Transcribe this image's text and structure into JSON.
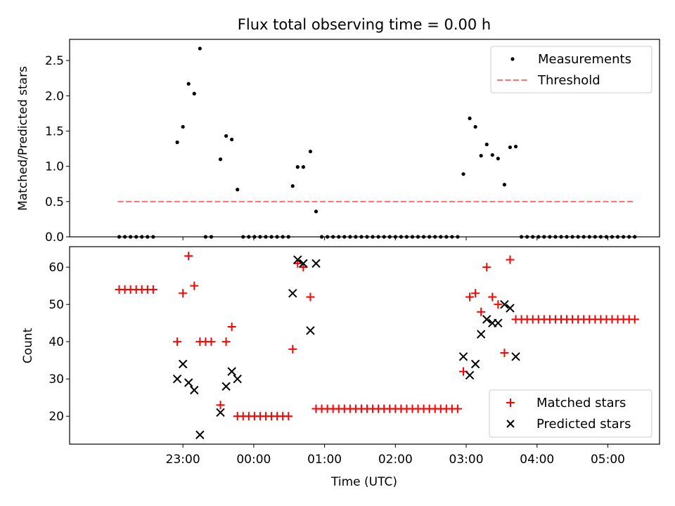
{
  "chart_data": [
    {
      "type": "scatter",
      "title": "Flux total observing time = 0.00 h",
      "ylabel": "Matched/Predicted stars",
      "xlabel": "",
      "xlim": [
        -2.6,
        5.73
      ],
      "ylim": [
        0,
        2.8
      ],
      "yticks": [
        0.0,
        0.5,
        1.0,
        1.5,
        2.0,
        2.5
      ],
      "ytick_labels": [
        "0.0",
        "0.5",
        "1.0",
        "1.5",
        "2.0",
        "2.5"
      ],
      "legend": [
        "Measurements",
        "Threshold"
      ],
      "legend_position": "upper right",
      "series": [
        {
          "name": "Measurements",
          "marker": "dot",
          "color": "#000000",
          "points": [
            [
              -1.9,
              0
            ],
            [
              -1.82,
              0
            ],
            [
              -1.74,
              0
            ],
            [
              -1.66,
              0
            ],
            [
              -1.58,
              0
            ],
            [
              -1.5,
              0
            ],
            [
              -1.42,
              0
            ],
            [
              -1.08,
              1.34
            ],
            [
              -1.0,
              1.56
            ],
            [
              -0.92,
              2.17
            ],
            [
              -0.84,
              2.03
            ],
            [
              -0.76,
              2.67
            ],
            [
              -0.68,
              0
            ],
            [
              -0.6,
              0
            ],
            [
              -0.47,
              1.1
            ],
            [
              -0.39,
              1.43
            ],
            [
              -0.31,
              1.38
            ],
            [
              -0.23,
              0.67
            ],
            [
              -0.15,
              0
            ],
            [
              -0.07,
              0
            ],
            [
              0.01,
              0
            ],
            [
              0.09,
              0
            ],
            [
              0.17,
              0
            ],
            [
              0.25,
              0
            ],
            [
              0.33,
              0
            ],
            [
              0.41,
              0
            ],
            [
              0.49,
              0
            ],
            [
              0.55,
              0.72
            ],
            [
              0.62,
              0.99
            ],
            [
              0.7,
              0.99
            ],
            [
              0.8,
              1.21
            ],
            [
              0.88,
              0.36
            ],
            [
              0.96,
              0
            ],
            [
              1.04,
              0
            ],
            [
              1.12,
              0
            ],
            [
              1.2,
              0
            ],
            [
              1.28,
              0
            ],
            [
              1.36,
              0
            ],
            [
              1.44,
              0
            ],
            [
              1.52,
              0
            ],
            [
              1.6,
              0
            ],
            [
              1.68,
              0
            ],
            [
              1.76,
              0
            ],
            [
              1.84,
              0
            ],
            [
              1.92,
              0
            ],
            [
              2.0,
              0
            ],
            [
              2.08,
              0
            ],
            [
              2.16,
              0
            ],
            [
              2.24,
              0
            ],
            [
              2.32,
              0
            ],
            [
              2.4,
              0
            ],
            [
              2.48,
              0
            ],
            [
              2.56,
              0
            ],
            [
              2.64,
              0
            ],
            [
              2.72,
              0
            ],
            [
              2.8,
              0
            ],
            [
              2.88,
              0
            ],
            [
              2.96,
              0.89
            ],
            [
              3.05,
              1.68
            ],
            [
              3.13,
              1.56
            ],
            [
              3.21,
              1.15
            ],
            [
              3.29,
              1.31
            ],
            [
              3.37,
              1.16
            ],
            [
              3.45,
              1.11
            ],
            [
              3.54,
              0.74
            ],
            [
              3.62,
              1.27
            ],
            [
              3.7,
              1.28
            ],
            [
              3.78,
              0
            ],
            [
              3.86,
              0
            ],
            [
              3.94,
              0
            ],
            [
              4.02,
              0
            ],
            [
              4.1,
              0
            ],
            [
              4.18,
              0
            ],
            [
              4.26,
              0
            ],
            [
              4.34,
              0
            ],
            [
              4.42,
              0
            ],
            [
              4.5,
              0
            ],
            [
              4.58,
              0
            ],
            [
              4.66,
              0
            ],
            [
              4.74,
              0
            ],
            [
              4.82,
              0
            ],
            [
              4.9,
              0
            ],
            [
              4.98,
              0
            ],
            [
              5.06,
              0
            ],
            [
              5.14,
              0
            ],
            [
              5.22,
              0
            ],
            [
              5.3,
              0
            ],
            [
              5.38,
              0
            ]
          ]
        },
        {
          "name": "Threshold",
          "marker": "dashed-line",
          "color": "#ff7070",
          "points": [
            [
              -1.92,
              0.5
            ],
            [
              5.38,
              0.5
            ]
          ]
        }
      ]
    },
    {
      "type": "scatter",
      "title": "",
      "ylabel": "Count",
      "xlabel": "Time (UTC)",
      "xlim": [
        -2.6,
        5.73
      ],
      "ylim": [
        12.5,
        65.5
      ],
      "yticks": [
        20,
        30,
        40,
        50,
        60
      ],
      "ytick_labels": [
        "20",
        "30",
        "40",
        "50",
        "60"
      ],
      "xticks": [
        -1,
        0,
        1,
        2,
        3,
        4,
        5
      ],
      "xtick_labels": [
        "23:00",
        "00:00",
        "01:00",
        "02:00",
        "03:00",
        "04:00",
        "05:00"
      ],
      "legend": [
        "Matched stars",
        "Predicted stars"
      ],
      "legend_position": "lower right",
      "series": [
        {
          "name": "Matched stars",
          "marker": "plus",
          "color": "#ff0000",
          "points": [
            [
              -1.9,
              54
            ],
            [
              -1.82,
              54
            ],
            [
              -1.74,
              54
            ],
            [
              -1.66,
              54
            ],
            [
              -1.58,
              54
            ],
            [
              -1.5,
              54
            ],
            [
              -1.42,
              54
            ],
            [
              -1.08,
              40
            ],
            [
              -1.0,
              53
            ],
            [
              -0.92,
              63
            ],
            [
              -0.84,
              55
            ],
            [
              -0.76,
              40
            ],
            [
              -0.68,
              40
            ],
            [
              -0.6,
              40
            ],
            [
              -0.47,
              23
            ],
            [
              -0.39,
              40
            ],
            [
              -0.31,
              44
            ],
            [
              -0.23,
              20
            ],
            [
              -0.15,
              20
            ],
            [
              -0.07,
              20
            ],
            [
              0.01,
              20
            ],
            [
              0.09,
              20
            ],
            [
              0.17,
              20
            ],
            [
              0.25,
              20
            ],
            [
              0.33,
              20
            ],
            [
              0.41,
              20
            ],
            [
              0.49,
              20
            ],
            [
              0.55,
              38
            ],
            [
              0.62,
              61
            ],
            [
              0.7,
              60
            ],
            [
              0.8,
              52
            ],
            [
              0.88,
              22
            ],
            [
              0.96,
              22
            ],
            [
              1.04,
              22
            ],
            [
              1.12,
              22
            ],
            [
              1.2,
              22
            ],
            [
              1.28,
              22
            ],
            [
              1.36,
              22
            ],
            [
              1.44,
              22
            ],
            [
              1.52,
              22
            ],
            [
              1.6,
              22
            ],
            [
              1.68,
              22
            ],
            [
              1.76,
              22
            ],
            [
              1.84,
              22
            ],
            [
              1.92,
              22
            ],
            [
              2.0,
              22
            ],
            [
              2.08,
              22
            ],
            [
              2.16,
              22
            ],
            [
              2.24,
              22
            ],
            [
              2.32,
              22
            ],
            [
              2.4,
              22
            ],
            [
              2.48,
              22
            ],
            [
              2.56,
              22
            ],
            [
              2.64,
              22
            ],
            [
              2.72,
              22
            ],
            [
              2.8,
              22
            ],
            [
              2.88,
              22
            ],
            [
              2.96,
              32
            ],
            [
              3.05,
              52
            ],
            [
              3.13,
              53
            ],
            [
              3.21,
              48
            ],
            [
              3.29,
              60
            ],
            [
              3.37,
              52
            ],
            [
              3.45,
              50
            ],
            [
              3.54,
              37
            ],
            [
              3.62,
              62
            ],
            [
              3.7,
              46
            ],
            [
              3.78,
              46
            ],
            [
              3.86,
              46
            ],
            [
              3.94,
              46
            ],
            [
              4.02,
              46
            ],
            [
              4.1,
              46
            ],
            [
              4.18,
              46
            ],
            [
              4.26,
              46
            ],
            [
              4.34,
              46
            ],
            [
              4.42,
              46
            ],
            [
              4.5,
              46
            ],
            [
              4.58,
              46
            ],
            [
              4.66,
              46
            ],
            [
              4.74,
              46
            ],
            [
              4.82,
              46
            ],
            [
              4.9,
              46
            ],
            [
              4.98,
              46
            ],
            [
              5.06,
              46
            ],
            [
              5.14,
              46
            ],
            [
              5.22,
              46
            ],
            [
              5.3,
              46
            ],
            [
              5.38,
              46
            ]
          ]
        },
        {
          "name": "Predicted stars",
          "marker": "x",
          "color": "#000000",
          "points": [
            [
              -1.08,
              30
            ],
            [
              -1.0,
              34
            ],
            [
              -0.92,
              29
            ],
            [
              -0.84,
              27
            ],
            [
              -0.76,
              15
            ],
            [
              -0.47,
              21
            ],
            [
              -0.39,
              28
            ],
            [
              -0.31,
              32
            ],
            [
              -0.23,
              30
            ],
            [
              0.55,
              53
            ],
            [
              0.62,
              62
            ],
            [
              0.7,
              61
            ],
            [
              0.8,
              43
            ],
            [
              0.88,
              61
            ],
            [
              2.96,
              36
            ],
            [
              3.05,
              31
            ],
            [
              3.13,
              34
            ],
            [
              3.21,
              42
            ],
            [
              3.29,
              46
            ],
            [
              3.37,
              45
            ],
            [
              3.45,
              45
            ],
            [
              3.54,
              50
            ],
            [
              3.62,
              49
            ],
            [
              3.7,
              36
            ]
          ]
        }
      ]
    }
  ]
}
